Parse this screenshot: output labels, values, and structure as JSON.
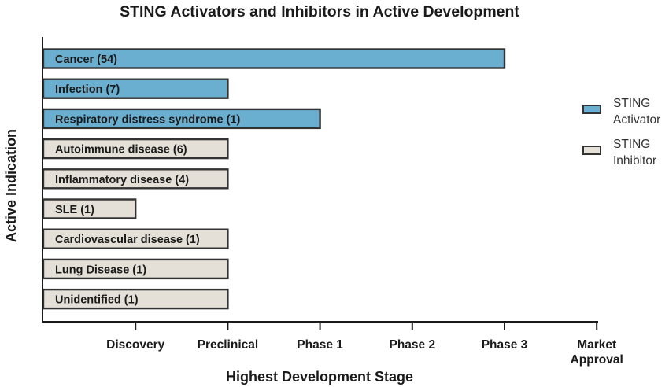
{
  "chart_data": {
    "type": "bar",
    "orientation": "horizontal",
    "title": "STING Activators and Inhibitors in Active Development",
    "xlabel": "Highest Development Stage",
    "ylabel": "Active Indication",
    "x_categories": [
      "Discovery",
      "Preclinical",
      "Phase 1",
      "Phase 2",
      "Phase 3",
      "Market Approval"
    ],
    "x_ticks_lines": [
      [
        "Discovery"
      ],
      [
        "Preclinical"
      ],
      [
        "Phase 1"
      ],
      [
        "Phase 2"
      ],
      [
        "Phase 3"
      ],
      [
        "Market",
        "Approval"
      ]
    ],
    "categories": [
      "Cancer (54)",
      "Infection (7)",
      "Respiratory distress syndrome (1)",
      "Autoimmune disease (6)",
      "Inflammatory disease (4)",
      "SLE (1)",
      "Cardiovascular disease (1)",
      "Lung Disease (1)",
      "Unidentified (1)"
    ],
    "values": [
      "Phase 3",
      "Preclinical",
      "Phase 1",
      "Preclinical",
      "Preclinical",
      "Discovery",
      "Preclinical",
      "Preclinical",
      "Preclinical"
    ],
    "series_membership": [
      "STING Activator",
      "STING Activator",
      "STING Activator",
      "STING Inhibitor",
      "STING Inhibitor",
      "STING Inhibitor",
      "STING Inhibitor",
      "STING Inhibitor",
      "STING Inhibitor"
    ],
    "series": [
      {
        "name": "STING Activator",
        "name_lines": [
          "STING",
          "Activator"
        ],
        "color": "#6aaed0"
      },
      {
        "name": "STING Inhibitor",
        "name_lines": [
          "STING",
          "Inhibitor"
        ],
        "color": "#e4e0d7"
      }
    ],
    "grid": false,
    "legend_position": "right"
  }
}
